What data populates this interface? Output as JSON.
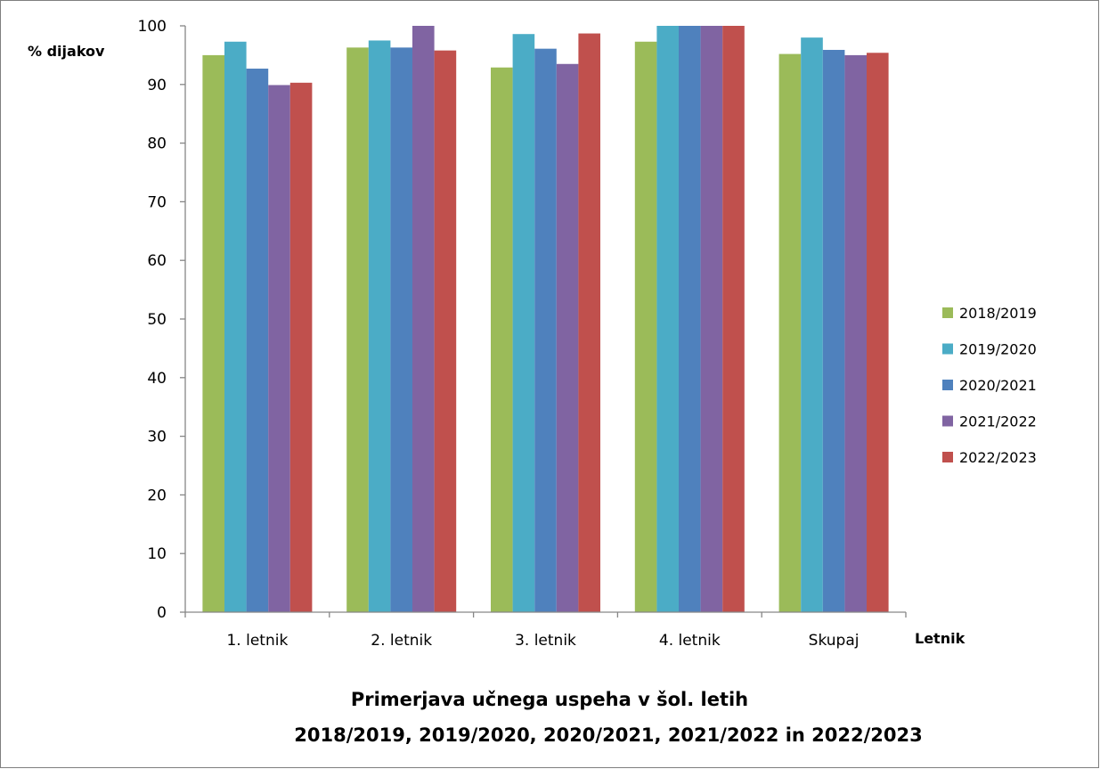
{
  "chart_data": {
    "type": "bar",
    "title_lines": [
      "Primerjava učnega uspeha v šol. letih",
      "2018/2019, 2019/2020, 2020/2021, 2021/2022 in 2022/2023"
    ],
    "xlabel": "Letnik",
    "ylabel": "% dijakov",
    "ylim": [
      0,
      100
    ],
    "yticks": [
      0,
      10,
      20,
      30,
      40,
      50,
      60,
      70,
      80,
      90,
      100
    ],
    "categories": [
      "1. letnik",
      "2. letnik",
      "3. letnik",
      "4. letnik",
      "Skupaj"
    ],
    "series": [
      {
        "name": "2018/2019",
        "color": "#9BBB59",
        "values": [
          95.0,
          96.3,
          92.9,
          97.3,
          95.2
        ]
      },
      {
        "name": "2019/2020",
        "color": "#4BACC6",
        "values": [
          97.3,
          97.5,
          98.6,
          100,
          98.0
        ]
      },
      {
        "name": "2020/2021",
        "color": "#4F81BD",
        "values": [
          92.7,
          96.3,
          96.1,
          100,
          95.9
        ]
      },
      {
        "name": "2021/2022",
        "color": "#8064A2",
        "values": [
          89.9,
          100,
          93.5,
          100,
          95.0
        ]
      },
      {
        "name": "2022/2023",
        "color": "#C0504D",
        "values": [
          90.3,
          95.8,
          98.7,
          100,
          95.4
        ]
      }
    ],
    "legend_position": "right",
    "grid": false
  }
}
